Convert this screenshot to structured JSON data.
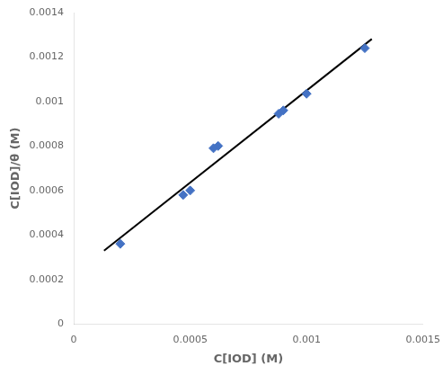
{
  "chart_data": {
    "type": "scatter",
    "xlabel": "C[IOD] (M)",
    "ylabel": "C[IOD]/θ (M)",
    "series": [
      {
        "type": "scatter",
        "marker": "diamond",
        "color": "#4472C4",
        "x": [
          0.0002,
          0.00047,
          0.0005,
          0.0006,
          0.00062,
          0.00088,
          0.0009,
          0.001,
          0.00125
        ],
        "values": [
          0.00036,
          0.00058,
          0.0006,
          0.00079,
          0.0008,
          0.000945,
          0.00096,
          0.001035,
          0.00124
        ]
      },
      {
        "type": "line",
        "color": "black",
        "x": [
          0.00013,
          0.00128
        ],
        "values": [
          0.000329491,
          0.00128116
        ]
      }
    ],
    "xlim": [
      0,
      0.0015
    ],
    "ylim": [
      0,
      0.0014
    ],
    "xticks": [
      0,
      0.0005,
      0.001,
      0.0015
    ],
    "yticks": [
      0,
      0.0002,
      0.0004,
      0.0006,
      0.0008,
      0.001,
      0.0012,
      0.0014
    ],
    "grid": false
  }
}
